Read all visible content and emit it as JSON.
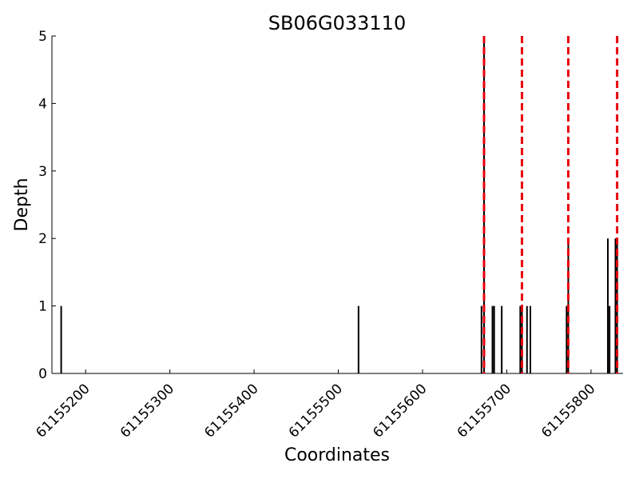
{
  "chart_data": {
    "type": "bar",
    "title": "SB06G033110",
    "xlabel": "Coordinates",
    "ylabel": "Depth",
    "xlim": [
      61155160,
      61155838
    ],
    "ylim": [
      0,
      5
    ],
    "x_ticks": [
      61155200,
      61155300,
      61155400,
      61155500,
      61155600,
      61155700,
      61155800
    ],
    "y_ticks": [
      0,
      1,
      2,
      3,
      4,
      5
    ],
    "grid": false,
    "series": [
      {
        "style": "black-bars",
        "points": [
          {
            "x": 61155171,
            "y": 1
          },
          {
            "x": 61155524,
            "y": 1
          },
          {
            "x": 61155670,
            "y": 1
          },
          {
            "x": 61155673,
            "y": 5
          },
          {
            "x": 61155683,
            "y": 1
          },
          {
            "x": 61155685,
            "y": 1
          },
          {
            "x": 61155694,
            "y": 1
          },
          {
            "x": 61155716,
            "y": 1
          },
          {
            "x": 61155718,
            "y": 1
          },
          {
            "x": 61155724,
            "y": 1
          },
          {
            "x": 61155728,
            "y": 1
          },
          {
            "x": 61155771,
            "y": 1
          },
          {
            "x": 61155773,
            "y": 2
          },
          {
            "x": 61155820,
            "y": 2
          },
          {
            "x": 61155822,
            "y": 1
          },
          {
            "x": 61155829,
            "y": 2
          },
          {
            "x": 61155831,
            "y": 2
          }
        ]
      }
    ],
    "vlines": {
      "color": "#e8000b",
      "style": "dashed",
      "x": [
        61155673,
        61155718,
        61155773,
        61155831
      ]
    }
  }
}
